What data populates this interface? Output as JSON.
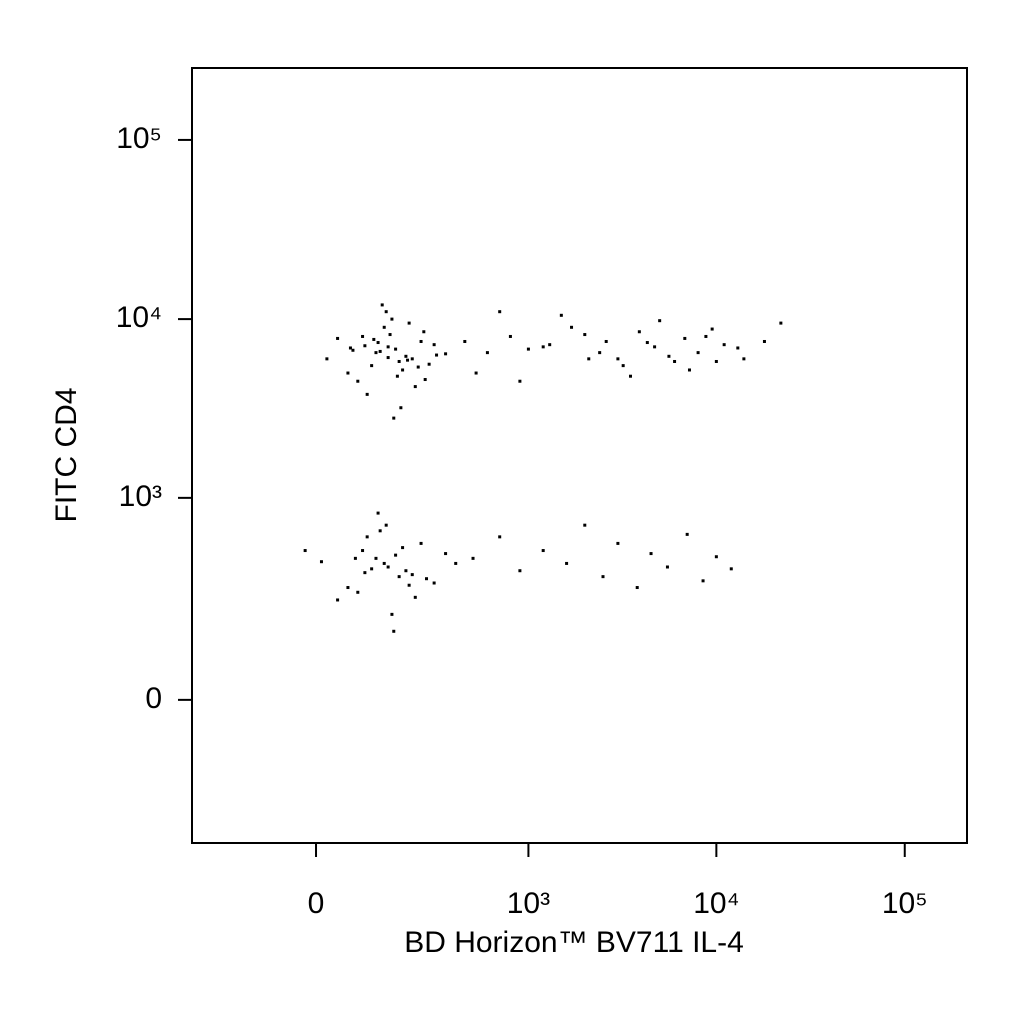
{
  "chart_data": {
    "type": "scatter",
    "x_label": "BD Horizon™ BV711 IL-4",
    "y_label": "FITC CD4",
    "xscale": "biexponential",
    "yscale": "biexponential",
    "xlim": [
      -325,
      214000
    ],
    "ylim": [
      -460,
      252000
    ],
    "xticks": [
      0,
      {
        "value": 1000,
        "label": "10³"
      },
      {
        "value": 10000,
        "label": "10⁴"
      },
      {
        "value": 100000,
        "label": "10⁵"
      }
    ],
    "yticks": [
      0,
      {
        "value": 1000,
        "label": "10³"
      },
      {
        "value": 10000,
        "label": "10⁴"
      },
      {
        "value": 100000,
        "label": "10⁵"
      }
    ],
    "color": "#000000",
    "x": [
      120,
      150,
      180,
      90,
      200,
      250,
      60,
      140,
      170,
      110,
      300,
      220,
      80,
      160,
      130,
      190,
      260,
      40,
      350,
      100,
      210,
      150,
      175,
      95,
      280,
      135,
      65,
      230,
      155,
      310,
      185,
      125,
      240,
      70,
      145,
      205,
      115,
      265,
      165,
      20,
      450,
      600,
      800,
      1000,
      1300,
      1700,
      2100,
      2600,
      3200,
      3900,
      4700,
      5600,
      6800,
      8000,
      9500,
      11000,
      14000,
      18000,
      22000,
      520,
      900,
      1500,
      2400,
      3500,
      5000,
      7200,
      10000,
      700,
      1200,
      2000,
      3000,
      4300,
      6000,
      8800,
      13000,
      150,
      120,
      180,
      90,
      200,
      60,
      250,
      140,
      100,
      300,
      170,
      40,
      220,
      130,
      80,
      350,
      190,
      110,
      160,
      10,
      270,
      145,
      75,
      210,
      125,
      400,
      -20,
      230,
      95,
      165,
      500,
      700,
      900,
      1200,
      1600,
      2000,
      2500,
      3000,
      3800,
      4500,
      5500,
      7000,
      8500,
      10000,
      12000
    ],
    "values": [
      6500,
      7000,
      5800,
      8000,
      6200,
      7500,
      5000,
      9000,
      6800,
      5500,
      7200,
      6000,
      4500,
      10000,
      6600,
      5200,
      8500,
      7800,
      6400,
      3800,
      9500,
      6100,
      4800,
      7100,
      5600,
      12000,
      6900,
      4200,
      8200,
      6300,
      3200,
      7400,
      5400,
      6700,
      11000,
      5900,
      7700,
      4600,
      2800,
      6000,
      7500,
      6500,
      8000,
      6800,
      7200,
      9000,
      6000,
      7500,
      5500,
      8500,
      7000,
      6200,
      7800,
      6500,
      8800,
      7200,
      6000,
      7500,
      9500,
      5000,
      4500,
      10500,
      6500,
      4800,
      9800,
      5200,
      5800,
      11000,
      7000,
      8200,
      6000,
      7400,
      5800,
      8000,
      6900,
      400,
      450,
      350,
      500,
      380,
      300,
      550,
      420,
      600,
      320,
      470,
      250,
      360,
      650,
      280,
      480,
      520,
      390,
      200,
      430,
      340,
      700,
      450,
      310,
      820,
      420,
      500,
      260,
      370,
      150,
      450,
      600,
      380,
      500,
      420,
      700,
      350,
      550,
      300,
      480,
      400,
      620,
      330,
      460,
      390
    ]
  }
}
